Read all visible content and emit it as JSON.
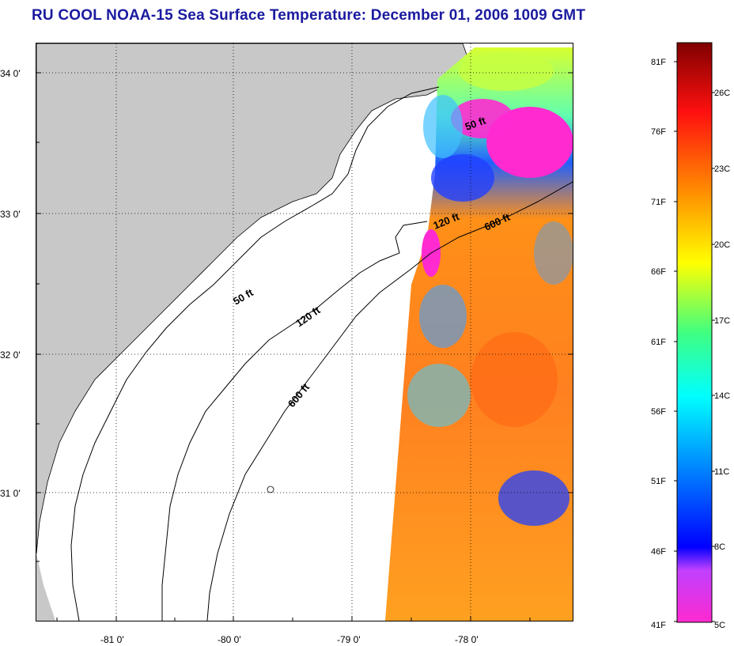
{
  "title": "RU COOL  NOAA-15  Sea Surface Temperature:  December 01, 2006 1009 GMT",
  "map": {
    "lat_labels": [
      "34 0'",
      "33 0'",
      "32 0'",
      "31 0'"
    ],
    "lon_labels": [
      "-81 0'",
      "-80 0'",
      "-79 0'",
      "-78 0'"
    ],
    "contour_labels": [
      "50 ft",
      "120 ft",
      "600 ft",
      "50 ft",
      "120 ft",
      "600 ft"
    ],
    "colors": {
      "land": "#c8c8c8",
      "ocean_nodata": "#ffffff",
      "grid": "#000000"
    }
  },
  "colorbar": {
    "fahrenheit_labels": [
      "81F",
      "76F",
      "71F",
      "66F",
      "61F",
      "56F",
      "51F",
      "46F",
      "41F"
    ],
    "celsius_labels": [
      "26C",
      "23C",
      "20C",
      "17C",
      "14C",
      "11C",
      "8C",
      "5C"
    ]
  }
}
